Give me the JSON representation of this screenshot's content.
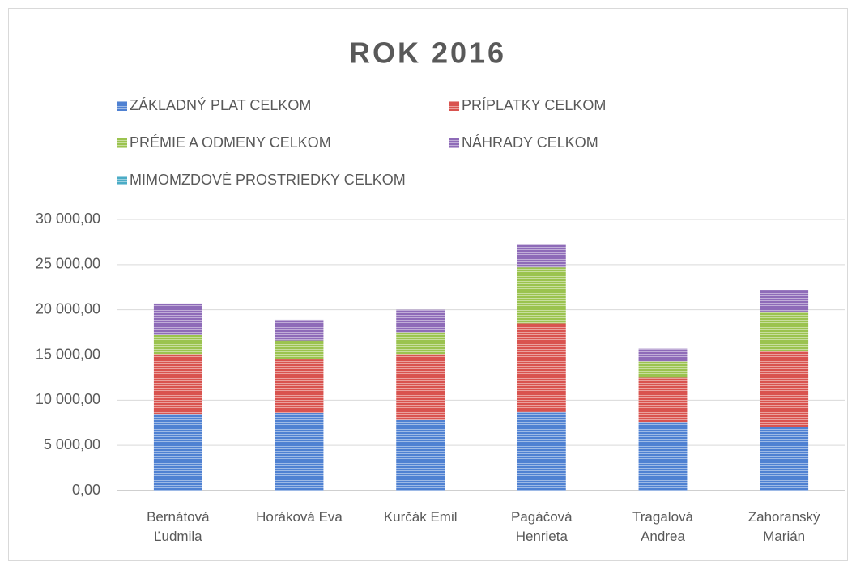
{
  "chart_data": {
    "type": "bar",
    "stacked": true,
    "title": "ROK 2016",
    "categories": [
      "Bernátová Ľudmila",
      "Horáková Eva",
      "Kurčák Emil",
      "Pagáčová Henrieta",
      "Tragalová Andrea",
      "Zahoranský Marián"
    ],
    "series": [
      {
        "name": "ZÁKLADNÝ PLAT CELKOM",
        "color": "#4f81d2",
        "values": [
          8400,
          8600,
          7800,
          8700,
          7600,
          7000
        ]
      },
      {
        "name": "PRÍPLATKY CELKOM",
        "color": "#d9534f",
        "values": [
          6700,
          5900,
          7300,
          9800,
          4900,
          8400
        ]
      },
      {
        "name": "PRÉMIE A ODMENY CELKOM",
        "color": "#9bc34f",
        "values": [
          2100,
          2100,
          2400,
          6200,
          1800,
          4400
        ]
      },
      {
        "name": "NÁHRADY CELKOM",
        "color": "#8e6bb8",
        "values": [
          3500,
          2300,
          2500,
          2500,
          1400,
          2400
        ]
      },
      {
        "name": "MIMOMZDOVÉ PROSTRIEDKY CELKOM",
        "color": "#4bacc6",
        "values": [
          0,
          0,
          0,
          0,
          0,
          0
        ]
      }
    ],
    "ylim": [
      0,
      30000
    ],
    "yticks": [
      {
        "value": 0,
        "label": "0,00"
      },
      {
        "value": 5000,
        "label": "5 000,00"
      },
      {
        "value": 10000,
        "label": "10 000,00"
      },
      {
        "value": 15000,
        "label": "15 000,00"
      },
      {
        "value": 20000,
        "label": "20 000,00"
      },
      {
        "value": 25000,
        "label": "25 000,00"
      },
      {
        "value": 30000,
        "label": "30 000,00"
      }
    ],
    "grid": true,
    "legend": "top"
  }
}
